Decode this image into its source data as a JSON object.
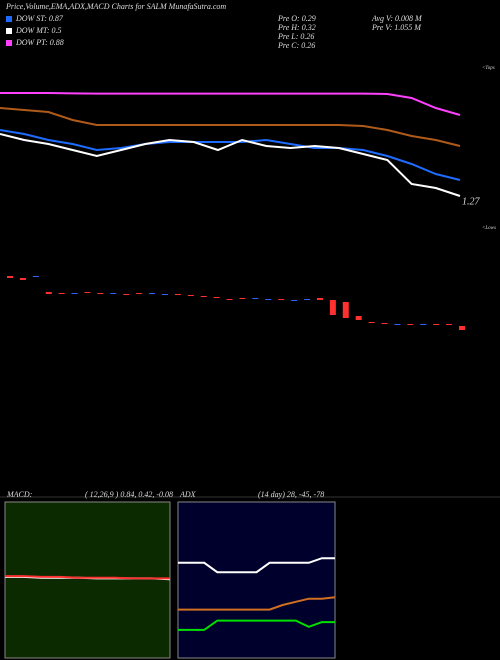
{
  "header": {
    "title": "Price,Volume,EMA,ADX,MACD Charts for SALM MunafaSutra.com",
    "legend": [
      {
        "label": "DOW ST: 0.87",
        "color": "#1e6cff"
      },
      {
        "label": "DOW MT: 0.5",
        "color": "#ffffff"
      },
      {
        "label": "DOW PT: 0.88",
        "color": "#ff40ff"
      }
    ],
    "info": [
      "Pre  O: 0.29",
      "Pre  H: 0.32",
      "Pre  L: 0.26",
      "Pre  C: 0.26"
    ],
    "info2": [
      "Avg  V: 0.008 M",
      "Pre  V: 1.055 M"
    ],
    "tops_label": "<Tops",
    "lows_label": "<Lows"
  },
  "chart_data": [
    {
      "type": "line",
      "ylim": [
        1.25,
        2.0
      ],
      "yticks": [
        1.27
      ],
      "categories": [
        null,
        null,
        null,
        null,
        null,
        null,
        null,
        null,
        null,
        null,
        null,
        null,
        null,
        null,
        null,
        null,
        null,
        null,
        null,
        null
      ],
      "series": [
        {
          "color": "#ff40ff",
          "values": [
            1.835,
            1.835,
            1.835,
            1.833,
            1.832,
            1.832,
            1.832,
            1.832,
            1.832,
            1.832,
            1.832,
            1.832,
            1.832,
            1.832,
            1.832,
            1.832,
            1.83,
            1.81,
            1.76,
            1.725
          ]
        },
        {
          "color": "#b05a1a",
          "values": [
            1.76,
            1.75,
            1.74,
            1.7,
            1.675,
            1.675,
            1.675,
            1.675,
            1.675,
            1.675,
            1.675,
            1.675,
            1.675,
            1.675,
            1.675,
            1.67,
            1.65,
            1.62,
            1.6,
            1.57
          ]
        },
        {
          "color": "#1e6cff",
          "values": [
            1.65,
            1.63,
            1.6,
            1.58,
            1.55,
            1.56,
            1.58,
            1.59,
            1.59,
            1.59,
            1.59,
            1.6,
            1.58,
            1.56,
            1.56,
            1.55,
            1.52,
            1.48,
            1.43,
            1.4
          ]
        },
        {
          "color": "#ffffff",
          "values": [
            1.63,
            1.6,
            1.58,
            1.55,
            1.52,
            1.55,
            1.58,
            1.6,
            1.59,
            1.55,
            1.6,
            1.57,
            1.56,
            1.57,
            1.56,
            1.53,
            1.5,
            1.38,
            1.36,
            1.32
          ]
        }
      ]
    },
    {
      "type": "candlestick",
      "ylim": [
        0,
        80
      ],
      "up_color": "#3060ff",
      "down_color": "#ff3030",
      "open": [
        64,
        62,
        63,
        48,
        47,
        46,
        48,
        47,
        46,
        46,
        47,
        46,
        45,
        46,
        45,
        44,
        43,
        41,
        42,
        41,
        40,
        41,
        39,
        40,
        42,
        40,
        38,
        24,
        18,
        17,
        15,
        16,
        15,
        16,
        16,
        14
      ],
      "close": [
        62,
        60,
        64,
        46,
        46,
        47,
        47,
        46,
        47,
        45,
        46,
        47,
        46,
        45,
        44,
        43,
        42,
        40,
        41,
        42,
        41,
        40,
        40,
        41,
        40,
        25,
        22,
        20,
        17,
        16,
        16,
        15,
        16,
        15,
        15,
        10
      ]
    },
    {
      "type": "line",
      "title": "MACD:",
      "subtitle": "( 12,26,9 ) 0.84, 0.42, -0.08",
      "ylim": [
        -1,
        1
      ],
      "background": "#0b2a00",
      "categories": [
        null,
        null,
        null,
        null,
        null,
        null,
        null,
        null,
        null,
        null
      ],
      "series": [
        {
          "color": "#ffffff",
          "values": [
            0.04,
            0.04,
            0.03,
            0.03,
            0.03,
            0.02,
            0.02,
            0.02,
            0.02,
            0.01
          ]
        },
        {
          "color": "#ff3030",
          "values": [
            0.05,
            0.05,
            0.04,
            0.04,
            0.03,
            0.03,
            0.03,
            0.02,
            0.02,
            0.02
          ]
        }
      ]
    },
    {
      "type": "line",
      "title": "ADX",
      "subtitle": "(14 day) 28, -45, -78",
      "ylim": [
        0,
        100
      ],
      "background": "#00002c",
      "categories": [
        null,
        null,
        null,
        null,
        null,
        null,
        null,
        null,
        null,
        null,
        null,
        null,
        null
      ],
      "series": [
        {
          "color": "#ffffff",
          "values": [
            61,
            61,
            61,
            55,
            55,
            55,
            55,
            61,
            61,
            61,
            61,
            64,
            64
          ]
        },
        {
          "color": "#d07020",
          "values": [
            31,
            31,
            31,
            31,
            31,
            31,
            31,
            31,
            34,
            36,
            38,
            38,
            39
          ]
        },
        {
          "color": "#00e000",
          "values": [
            18,
            18,
            18,
            24,
            24,
            24,
            24,
            24,
            24,
            24,
            20,
            23,
            23
          ]
        }
      ]
    }
  ]
}
